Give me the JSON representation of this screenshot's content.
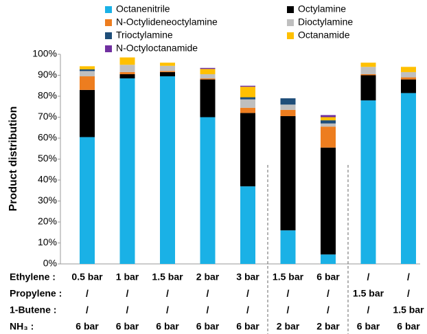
{
  "chart_data": {
    "type": "stacked_bar",
    "y_label": "Product distribution",
    "ylim": [
      0,
      100
    ],
    "yticks": [
      {
        "value": 0,
        "label": "0%"
      },
      {
        "value": 10,
        "label": "10%"
      },
      {
        "value": 20,
        "label": "20%"
      },
      {
        "value": 30,
        "label": "30%"
      },
      {
        "value": 40,
        "label": "40%"
      },
      {
        "value": 50,
        "label": "50%"
      },
      {
        "value": 60,
        "label": "60%"
      },
      {
        "value": 70,
        "label": "70%"
      },
      {
        "value": 80,
        "label": "80%"
      },
      {
        "value": 90,
        "label": "90%"
      },
      {
        "value": 100,
        "label": "100%"
      }
    ],
    "series": [
      {
        "name": "Octanenitrile",
        "color": "#1ab1e6",
        "values": [
          60.5,
          88.5,
          89.5,
          70,
          37,
          16,
          4.5,
          78,
          81.5
        ]
      },
      {
        "name": "Octylamine",
        "color": "#000000",
        "values": [
          22.5,
          2,
          2,
          18,
          35,
          54.5,
          51,
          12,
          6.5
        ]
      },
      {
        "name": "N-Octylideneoctylamine",
        "color": "#ed7d1f",
        "values": [
          6.5,
          1,
          0.5,
          0.5,
          2.5,
          3,
          10,
          0.5,
          1
        ]
      },
      {
        "name": "Dioctylamine",
        "color": "#bfbfbf",
        "values": [
          2.5,
          3.5,
          2.5,
          2,
          4,
          2.5,
          1.5,
          3.5,
          2.5
        ]
      },
      {
        "name": "Trioctylamine",
        "color": "#1f4e79",
        "values": [
          0.8,
          0,
          0,
          0,
          1,
          3,
          1.5,
          0,
          0
        ]
      },
      {
        "name": "Octanamide",
        "color": "#ffc000",
        "values": [
          1.5,
          3.5,
          1.5,
          2.5,
          5,
          0,
          1.5,
          2,
          2.5
        ]
      },
      {
        "name": "N-Octyloctanamide",
        "color": "#7030a0",
        "values": [
          0,
          0,
          0,
          0.5,
          0.5,
          0,
          1,
          0,
          0
        ]
      }
    ],
    "conditions": [
      {
        "label": "Ethylene :",
        "cells": [
          "0.5 bar",
          "1 bar",
          "1.5 bar",
          "2 bar",
          "3 bar",
          "1.5 bar",
          "6 bar",
          "/",
          "/"
        ]
      },
      {
        "label": "Propylene :",
        "cells": [
          "/",
          "/",
          "/",
          "/",
          "/",
          "/",
          "/",
          "1.5 bar",
          "/"
        ]
      },
      {
        "label": "1-Butene :",
        "cells": [
          "/",
          "/",
          "/",
          "/",
          "/",
          "/",
          "/",
          "/",
          "1.5 bar"
        ]
      },
      {
        "label": "NH₃ :",
        "cells": [
          "6 bar",
          "6 bar",
          "6 bar",
          "6 bar",
          "6 bar",
          "2 bar",
          "2 bar",
          "6 bar",
          "6 bar"
        ]
      }
    ]
  }
}
